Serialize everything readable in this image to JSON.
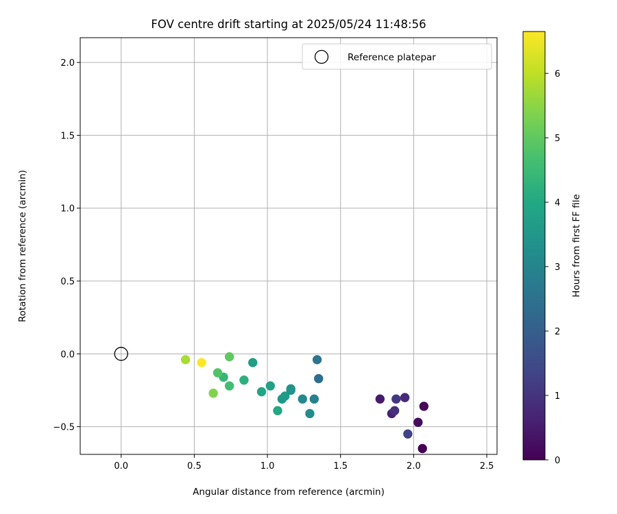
{
  "chart_data": {
    "type": "scatter",
    "title": "FOV centre drift starting at 2025/05/24 11:48:56",
    "xlabel": "Angular distance from reference (arcmin)",
    "ylabel": "Rotation from reference (arcmin)",
    "xlim": [
      -0.28,
      2.57
    ],
    "ylim": [
      -0.69,
      2.17
    ],
    "xticks": [
      0.0,
      0.5,
      1.0,
      1.5,
      2.0,
      2.5
    ],
    "xtick_labels": [
      "0.0",
      "0.5",
      "1.0",
      "1.5",
      "2.0",
      "2.5"
    ],
    "yticks": [
      -0.5,
      0.0,
      0.5,
      1.0,
      1.5,
      2.0
    ],
    "ytick_labels": [
      "−0.5",
      "0.0",
      "0.5",
      "1.0",
      "1.5",
      "2.0"
    ],
    "grid": true,
    "legend": {
      "placement": "top-right",
      "entries": [
        "Reference platepar"
      ]
    },
    "reference_point": {
      "x": 0.0,
      "y": 0.0,
      "marker": "open-circle"
    },
    "colorbar": {
      "label": "Hours from first FF file",
      "colormap": "viridis",
      "range": [
        0,
        6.65
      ],
      "ticks": [
        0,
        1,
        2,
        3,
        4,
        5,
        6
      ],
      "tick_labels": [
        "0",
        "1",
        "2",
        "3",
        "4",
        "5",
        "6"
      ]
    },
    "series": [
      {
        "points": [
          {
            "x": 2.06,
            "y": -0.65,
            "c": 0.0
          },
          {
            "x": 2.07,
            "y": -0.36,
            "c": 0.1
          },
          {
            "x": 2.03,
            "y": -0.47,
            "c": 0.2
          },
          {
            "x": 1.77,
            "y": -0.31,
            "c": 0.5
          },
          {
            "x": 1.85,
            "y": -0.41,
            "c": 0.6
          },
          {
            "x": 1.94,
            "y": -0.3,
            "c": 0.8
          },
          {
            "x": 1.87,
            "y": -0.39,
            "c": 0.9
          },
          {
            "x": 1.88,
            "y": -0.31,
            "c": 1.1
          },
          {
            "x": 1.96,
            "y": -0.55,
            "c": 1.3
          },
          {
            "x": 1.35,
            "y": -0.17,
            "c": 2.4
          },
          {
            "x": 1.34,
            "y": -0.04,
            "c": 2.6
          },
          {
            "x": 1.32,
            "y": -0.31,
            "c": 2.9
          },
          {
            "x": 1.24,
            "y": -0.31,
            "c": 3.1
          },
          {
            "x": 1.29,
            "y": -0.41,
            "c": 3.2
          },
          {
            "x": 1.16,
            "y": -0.24,
            "c": 3.3
          },
          {
            "x": 1.16,
            "y": -0.25,
            "c": 3.4
          },
          {
            "x": 1.1,
            "y": -0.31,
            "c": 3.5
          },
          {
            "x": 1.12,
            "y": -0.29,
            "c": 3.6
          },
          {
            "x": 0.9,
            "y": -0.06,
            "c": 3.7
          },
          {
            "x": 1.02,
            "y": -0.22,
            "c": 3.8
          },
          {
            "x": 0.96,
            "y": -0.26,
            "c": 3.9
          },
          {
            "x": 1.07,
            "y": -0.39,
            "c": 4.0
          },
          {
            "x": 0.84,
            "y": -0.18,
            "c": 4.2
          },
          {
            "x": 0.7,
            "y": -0.16,
            "c": 4.4
          },
          {
            "x": 0.74,
            "y": -0.22,
            "c": 4.6
          },
          {
            "x": 0.66,
            "y": -0.13,
            "c": 4.8
          },
          {
            "x": 0.74,
            "y": -0.02,
            "c": 5.0
          },
          {
            "x": 0.63,
            "y": -0.27,
            "c": 5.4
          },
          {
            "x": 0.44,
            "y": -0.04,
            "c": 5.8
          },
          {
            "x": 0.55,
            "y": -0.06,
            "c": 6.65
          }
        ]
      }
    ]
  }
}
